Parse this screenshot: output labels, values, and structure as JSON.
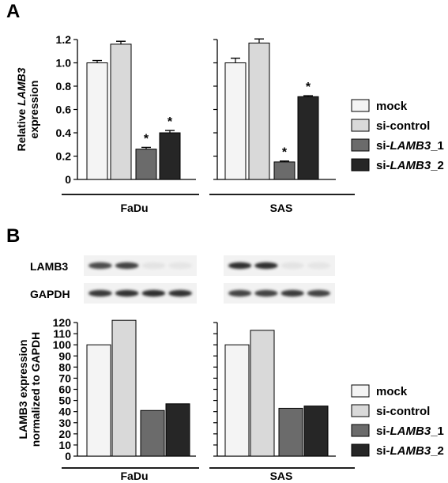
{
  "colors": {
    "mock": "#f4f4f4",
    "si_control": "#d9d9d9",
    "si_lamb3_1": "#6b6b6b",
    "si_lamb3_2": "#262626",
    "axis": "#000000"
  },
  "legend_entries": [
    {
      "key": "mock",
      "parts": [
        {
          "t": "mock",
          "i": false
        }
      ]
    },
    {
      "key": "si_control",
      "parts": [
        {
          "t": "si-control",
          "i": false
        }
      ]
    },
    {
      "key": "si_lamb3_1",
      "parts": [
        {
          "t": "si-",
          "i": false
        },
        {
          "t": "LAMB3",
          "i": true
        },
        {
          "t": "_1",
          "i": false
        }
      ]
    },
    {
      "key": "si_lamb3_2",
      "parts": [
        {
          "t": "si-",
          "i": false
        },
        {
          "t": "LAMB3",
          "i": true
        },
        {
          "t": "_2",
          "i": false
        }
      ]
    }
  ],
  "chart_data": [
    {
      "type": "bar",
      "panel_label": "A",
      "ylabel_line1": {
        "pre": "Relative ",
        "italic": "LAMB3",
        "post": ""
      },
      "ylabel_line2": "expression",
      "ylim": [
        0,
        1.2
      ],
      "yticks": [
        "0",
        "0.2",
        "0.4",
        "0.6",
        "0.8",
        "1.0",
        "1.2"
      ],
      "ytick_values": [
        0,
        0.2,
        0.4,
        0.6,
        0.8,
        1.0,
        1.2
      ],
      "categories": [
        "FaDu",
        "SAS"
      ],
      "series_keys": [
        "mock",
        "si_control",
        "si_lamb3_1",
        "si_lamb3_2"
      ],
      "values": [
        [
          1.0,
          1.16,
          0.26,
          0.4
        ],
        [
          1.0,
          1.17,
          0.15,
          0.71
        ]
      ],
      "errors": [
        [
          0.02,
          0.025,
          0.015,
          0.02
        ],
        [
          0.04,
          0.035,
          0.008,
          0.008
        ]
      ],
      "significance": [
        [
          false,
          false,
          true,
          true
        ],
        [
          false,
          false,
          true,
          true
        ]
      ],
      "significance_mark": "*",
      "legend_placement": "right",
      "grid": false
    },
    {
      "type": "bar",
      "panel_label": "B",
      "ylabel_line1": {
        "pre": "LAMB3 expression",
        "italic": "",
        "post": ""
      },
      "ylabel_line2": "normalized to GAPDH",
      "ylim": [
        0,
        120
      ],
      "yticks": [
        "0",
        "10",
        "20",
        "30",
        "40",
        "50",
        "60",
        "70",
        "80",
        "90",
        "100",
        "110",
        "120"
      ],
      "ytick_values": [
        0,
        10,
        20,
        30,
        40,
        50,
        60,
        70,
        80,
        90,
        100,
        110,
        120
      ],
      "categories": [
        "FaDu",
        "SAS"
      ],
      "series_keys": [
        "mock",
        "si_control",
        "si_lamb3_1",
        "si_lamb3_2"
      ],
      "values": [
        [
          100,
          122,
          41,
          47
        ],
        [
          100,
          113,
          43,
          45
        ]
      ],
      "legend_placement": "right",
      "grid": false,
      "blot_labels": [
        "LAMB3",
        "GAPDH"
      ],
      "blot_intensity": {
        "LAMB3": [
          [
            0.78,
            0.82,
            0.04,
            0.03
          ],
          [
            0.92,
            0.92,
            0.04,
            0.03
          ]
        ],
        "GAPDH": [
          [
            0.88,
            0.9,
            0.92,
            0.9
          ],
          [
            0.82,
            0.82,
            0.86,
            0.82
          ]
        ]
      }
    }
  ]
}
